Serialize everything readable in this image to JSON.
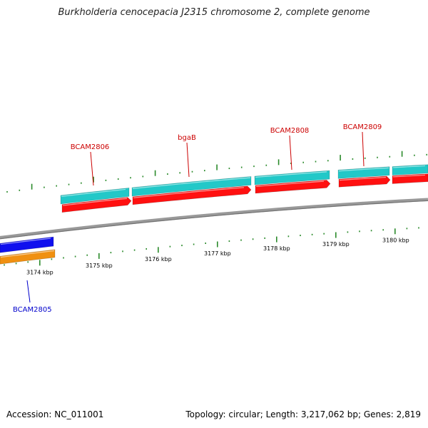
{
  "title": "Burkholderia cenocepacia J2315 chromosome 2, complete genome",
  "footer": {
    "accession": "Accession: NC_011001",
    "summary": "Topology: circular; Length: 3,217,062 bp; Genes: 2,819"
  },
  "colors": {
    "forward_label": "#cc0000",
    "reverse_label": "#0000cc",
    "cds_forward": "#ff1010",
    "gene_forward": "#22c8c8",
    "cds_reverse": "#1010ee",
    "gene_reverse": "#f09010",
    "backbone": "#888888",
    "tick": "#2a8a2a"
  },
  "genes": [
    {
      "name": "BCAM2805",
      "strand": "reverse"
    },
    {
      "name": "BCAM2806",
      "strand": "forward"
    },
    {
      "name": "bgaB",
      "strand": "forward"
    },
    {
      "name": "BCAM2808",
      "strand": "forward"
    },
    {
      "name": "BCAM2809",
      "strand": "forward"
    }
  ],
  "scale": {
    "labels": [
      "3174 kbp",
      "3175 kbp",
      "3176 kbp",
      "3177 kbp",
      "3178 kbp",
      "3179 kbp",
      "3180 kbp"
    ]
  }
}
